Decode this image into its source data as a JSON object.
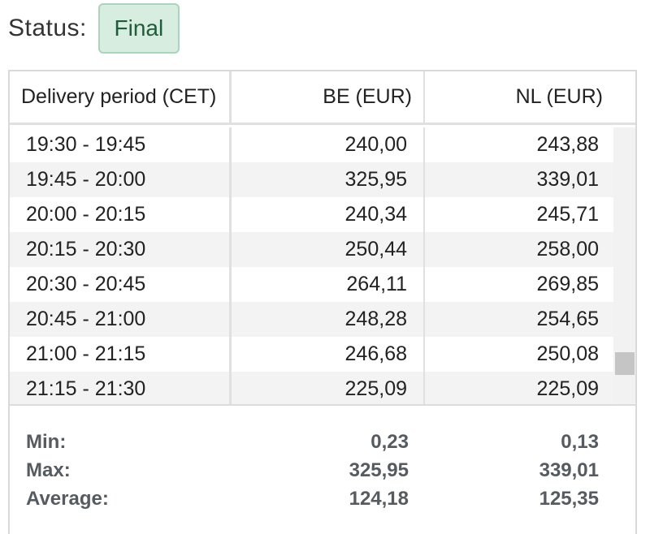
{
  "status": {
    "label": "Status:",
    "value": "Final"
  },
  "table": {
    "columns": [
      "Delivery period (CET)",
      "BE (EUR)",
      "NL (EUR)"
    ],
    "rows": [
      {
        "period": "19:30 - 19:45",
        "be": "240,00",
        "nl": "243,88"
      },
      {
        "period": "19:45 - 20:00",
        "be": "325,95",
        "nl": "339,01"
      },
      {
        "period": "20:00 - 20:15",
        "be": "240,34",
        "nl": "245,71"
      },
      {
        "period": "20:15 - 20:30",
        "be": "250,44",
        "nl": "258,00"
      },
      {
        "period": "20:30 - 20:45",
        "be": "264,11",
        "nl": "269,85"
      },
      {
        "period": "20:45 - 21:00",
        "be": "248,28",
        "nl": "254,65"
      },
      {
        "period": "21:00 - 21:15",
        "be": "246,68",
        "nl": "250,08"
      },
      {
        "period": "21:15 - 21:30",
        "be": "225,09",
        "nl": "225,09"
      }
    ]
  },
  "summary": {
    "min": {
      "label": "Min:",
      "be": "0,23",
      "nl": "0,13"
    },
    "max": {
      "label": "Max:",
      "be": "325,95",
      "nl": "339,01"
    },
    "average": {
      "label": "Average:",
      "be": "124,18",
      "nl": "125,35"
    }
  },
  "colors": {
    "badge_bg": "#d7ede0",
    "badge_border": "#a9d6bb",
    "badge_text": "#1f5c3a",
    "stripe": "#f3f3f3"
  }
}
